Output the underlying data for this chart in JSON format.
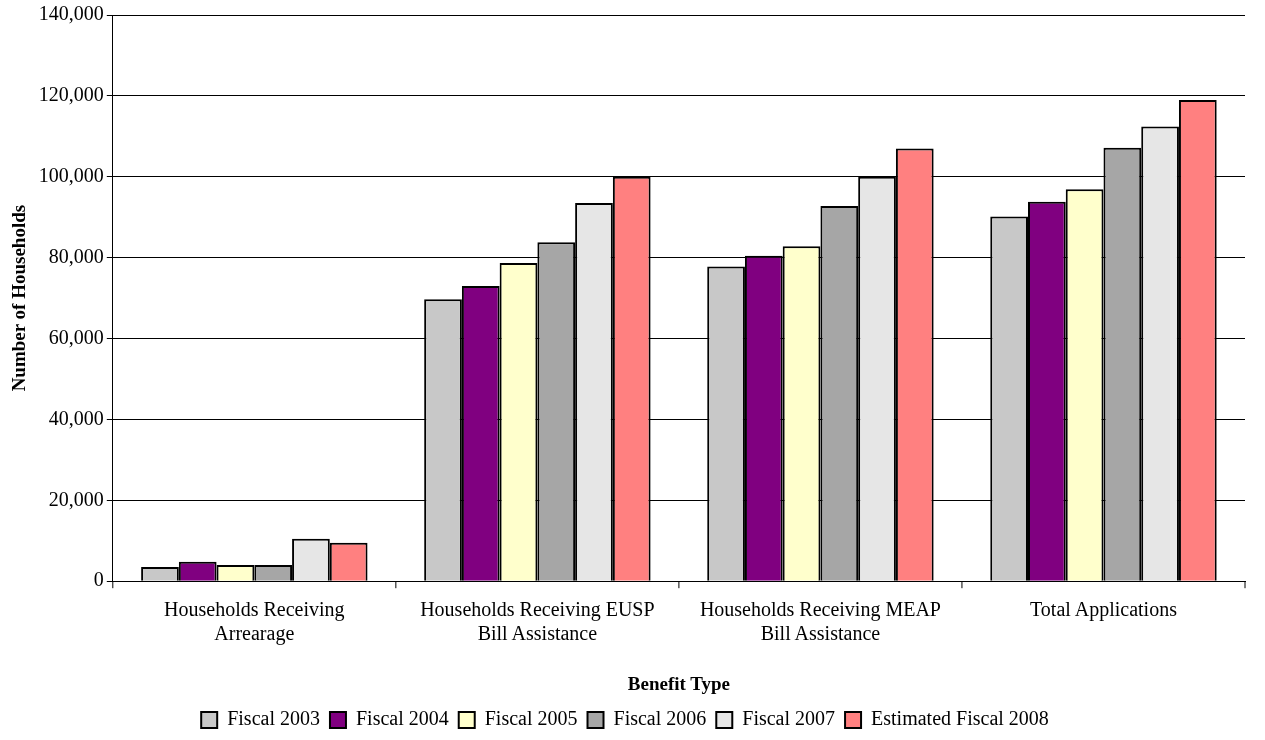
{
  "chart_data": {
    "type": "bar",
    "xlabel": "Benefit Type",
    "ylabel": "Number of Households",
    "categories": [
      "Households Receiving Arrearage",
      "Households Receiving EUSP Bill Assistance",
      "Households Receiving MEAP Bill Assistance",
      "Total Applications"
    ],
    "series": [
      {
        "name": "Fiscal 2003",
        "color": "#c8c8c8",
        "values": [
          3500,
          69700,
          77800,
          90200
        ]
      },
      {
        "name": "Fiscal 2004",
        "color": "#800080",
        "values": [
          4800,
          73000,
          80500,
          93800
        ]
      },
      {
        "name": "Fiscal 2005",
        "color": "#ffffcc",
        "values": [
          4000,
          78700,
          82800,
          96900
        ]
      },
      {
        "name": "Fiscal 2006",
        "color": "#a6a6a6",
        "values": [
          4000,
          83800,
          92800,
          107200
        ]
      },
      {
        "name": "Fiscal 2007",
        "color": "#e6e6e6",
        "values": [
          10500,
          93500,
          100000,
          112400
        ]
      },
      {
        "name": "Estimated Fiscal 2008",
        "color": "#ff8080",
        "values": [
          9500,
          100000,
          107000,
          119000
        ]
      }
    ],
    "ylim": [
      0,
      140000
    ],
    "yticks": [
      0,
      {
        "value": 20000,
        "label": "20,000"
      },
      {
        "value": 40000,
        "label": "40,000"
      },
      {
        "value": 60000,
        "label": "60,000"
      },
      {
        "value": 80000,
        "label": "80,000"
      },
      {
        "value": 100000,
        "label": "100,000"
      },
      {
        "value": 120000,
        "label": "120,000"
      },
      {
        "value": 140000,
        "label": "140,000"
      }
    ],
    "grid": "y",
    "legend": "bottom"
  }
}
